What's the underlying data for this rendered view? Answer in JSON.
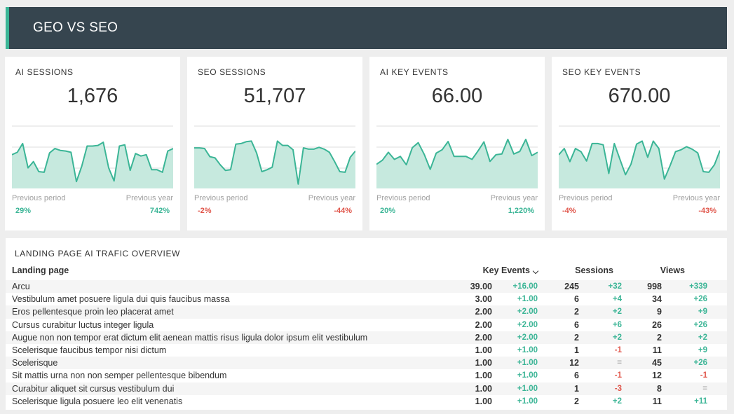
{
  "header": {
    "title": "GEO VS SEO",
    "accent_color": "#3bb596",
    "bg_color": "#36454f"
  },
  "kpis": [
    {
      "title": "AI SESSIONS",
      "value": "1,676",
      "prev_period_label": "Previous period",
      "prev_year_label": "Previous year",
      "prev_period_pct": "29%",
      "prev_period_dir": "pos",
      "prev_year_pct": "742%",
      "prev_year_dir": "pos",
      "sparkline": [
        5.4,
        5.8,
        7.2,
        3.3,
        4.3,
        2.7,
        2.6,
        5.7,
        6.4,
        6.1,
        6.0,
        5.8,
        1.1,
        3.6,
        6.8,
        6.8,
        6.9,
        7.4,
        3.3,
        1.2,
        6.8,
        7.0,
        2.9,
        5.6,
        5.2,
        5.4,
        3.0,
        3.0,
        2.6,
        6.0,
        6.4
      ],
      "sparkline_max": 10
    },
    {
      "title": "SEO SESSIONS",
      "value": "51,707",
      "prev_period_label": "Previous period",
      "prev_year_label": "Previous year",
      "prev_period_pct": "-2%",
      "prev_period_dir": "neg",
      "prev_year_pct": "-44%",
      "prev_year_dir": "neg",
      "sparkline": [
        6.5,
        6.5,
        6.4,
        5.1,
        4.9,
        3.8,
        2.9,
        3.0,
        7.1,
        7.2,
        7.5,
        7.6,
        5.7,
        2.7,
        3.0,
        3.4,
        7.6,
        6.9,
        6.9,
        6.2,
        0.7,
        6.5,
        6.3,
        6.3,
        6.6,
        6.3,
        5.8,
        4.3,
        2.7,
        2.6,
        5.0,
        6.0
      ],
      "sparkline_max": 10
    },
    {
      "title": "AI KEY EVENTS",
      "value": "66.00",
      "prev_period_label": "Previous period",
      "prev_year_label": "Previous year",
      "prev_period_pct": "20%",
      "prev_period_dir": "pos",
      "prev_year_pct": "1,220%",
      "prev_year_dir": "pos",
      "sparkline": [
        5.8,
        6.8,
        8.7,
        7.0,
        7.7,
        5.7,
        9.8,
        11.0,
        8.2,
        4.6,
        8.5,
        9.3,
        11.3,
        7.7,
        7.7,
        7.7,
        7.0,
        9.0,
        11.2,
        6.5,
        8.1,
        8.3,
        11.8,
        8.3,
        8.9,
        11.8,
        7.9,
        8.7
      ],
      "sparkline_max": 15
    },
    {
      "title": "SEO KEY EVENTS",
      "value": "670.00",
      "prev_period_label": "Previous period",
      "prev_year_label": "Previous year",
      "prev_period_pct": "-4%",
      "prev_period_dir": "neg",
      "prev_year_pct": "-43%",
      "prev_year_dir": "neg",
      "sparkline": [
        5.4,
        6.4,
        4.3,
        6.4,
        5.9,
        4.4,
        7.2,
        7.2,
        7.0,
        2.4,
        7.2,
        4.7,
        2.2,
        3.9,
        7.1,
        7.6,
        5.0,
        7.6,
        6.4,
        1.5,
        3.6,
        5.9,
        6.2,
        6.7,
        6.3,
        5.7,
        2.7,
        2.6,
        3.8,
        6.1
      ],
      "sparkline_max": 10
    }
  ],
  "table": {
    "title": "LANDING PAGE AI TRAFIC OVERVIEW",
    "headers": {
      "page": "Landing page",
      "key_events": "Key Events",
      "sessions": "Sessions",
      "views": "Views"
    },
    "rows": [
      {
        "page": "Arcu",
        "ke": "39.00",
        "ke_d": "+16.00",
        "ke_dir": "pos",
        "se": "245",
        "se_d": "+32",
        "se_dir": "pos",
        "vi": "998",
        "vi_d": "+339",
        "vi_dir": "pos"
      },
      {
        "page": "Vestibulum amet posuere ligula dui quis faucibus massa",
        "ke": "3.00",
        "ke_d": "+1.00",
        "ke_dir": "pos",
        "se": "6",
        "se_d": "+4",
        "se_dir": "pos",
        "vi": "34",
        "vi_d": "+26",
        "vi_dir": "pos"
      },
      {
        "page": "Eros pellentesque proin leo placerat amet",
        "ke": "2.00",
        "ke_d": "+2.00",
        "ke_dir": "pos",
        "se": "2",
        "se_d": "+2",
        "se_dir": "pos",
        "vi": "9",
        "vi_d": "+9",
        "vi_dir": "pos"
      },
      {
        "page": "Cursus curabitur luctus integer ligula",
        "ke": "2.00",
        "ke_d": "+2.00",
        "ke_dir": "pos",
        "se": "6",
        "se_d": "+6",
        "se_dir": "pos",
        "vi": "26",
        "vi_d": "+26",
        "vi_dir": "pos"
      },
      {
        "page": "Augue non non tempor erat dictum elit aenean mattis risus ligula dolor ipsum elit vestibulum",
        "ke": "2.00",
        "ke_d": "+2.00",
        "ke_dir": "pos",
        "se": "2",
        "se_d": "+2",
        "se_dir": "pos",
        "vi": "2",
        "vi_d": "+2",
        "vi_dir": "pos"
      },
      {
        "page": "Scelerisque faucibus tempor nisi dictum",
        "ke": "1.00",
        "ke_d": "+1.00",
        "ke_dir": "pos",
        "se": "1",
        "se_d": "-1",
        "se_dir": "neg",
        "vi": "11",
        "vi_d": "+9",
        "vi_dir": "pos"
      },
      {
        "page": "Scelerisque",
        "ke": "1.00",
        "ke_d": "+1.00",
        "ke_dir": "pos",
        "se": "12",
        "se_d": "=",
        "se_dir": "neu",
        "vi": "45",
        "vi_d": "+26",
        "vi_dir": "pos"
      },
      {
        "page": "Sit mattis urna non non semper pellentesque bibendum",
        "ke": "1.00",
        "ke_d": "+1.00",
        "ke_dir": "pos",
        "se": "6",
        "se_d": "-1",
        "se_dir": "neg",
        "vi": "12",
        "vi_d": "-1",
        "vi_dir": "neg"
      },
      {
        "page": "Curabitur aliquet sit cursus vestibulum dui",
        "ke": "1.00",
        "ke_d": "+1.00",
        "ke_dir": "pos",
        "se": "1",
        "se_d": "-3",
        "se_dir": "neg",
        "vi": "8",
        "vi_d": "=",
        "vi_dir": "neu"
      },
      {
        "page": "Scelerisque ligula posuere leo elit venenatis",
        "ke": "1.00",
        "ke_d": "+1.00",
        "ke_dir": "pos",
        "se": "2",
        "se_d": "+2",
        "se_dir": "pos",
        "vi": "11",
        "vi_d": "+11",
        "vi_dir": "pos"
      }
    ]
  },
  "colors": {
    "positive": "#3bb596",
    "negative": "#e0554a",
    "neutral": "#b0b0b0",
    "spark_line": "#3bb596",
    "spark_fill": "#c6e9de"
  }
}
